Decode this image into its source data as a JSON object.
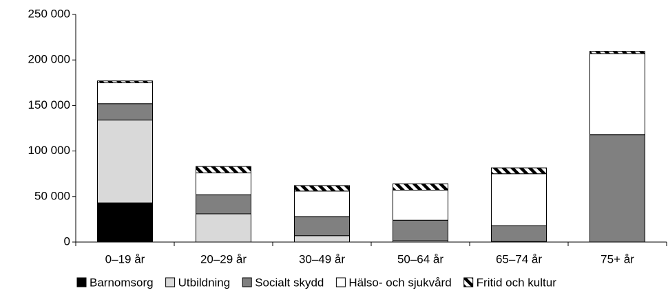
{
  "chart_data": {
    "type": "stacked_bar",
    "categories": [
      "0–19 år",
      "20–29 år",
      "30–49 år",
      "50–64 år",
      "65–74 år",
      "75+ år"
    ],
    "series": [
      {
        "name": "Barnomsorg",
        "color": "#000000",
        "values": [
          43000,
          0,
          0,
          0,
          500,
          0
        ]
      },
      {
        "name": "Utbildning",
        "color": "#d9d9d9",
        "values": [
          91000,
          31000,
          7000,
          1500,
          0,
          0
        ]
      },
      {
        "name": "Socialt skydd",
        "color": "#808080",
        "values": [
          18000,
          21000,
          21000,
          22500,
          17500,
          118000
        ]
      },
      {
        "name": "Hälso- och sjukvård",
        "color": "#ffffff",
        "values": [
          23000,
          24000,
          28000,
          33000,
          57000,
          89000
        ]
      },
      {
        "name": "Fritid och kultur",
        "color": "#ffffff",
        "hatch": true,
        "values": [
          2000,
          7000,
          6000,
          7000,
          6500,
          2500
        ]
      }
    ],
    "ylim": [
      0,
      250000
    ],
    "yticks": [
      0,
      {
        "value": 50000,
        "label": "50 000"
      },
      {
        "value": 100000,
        "label": "100 000"
      },
      {
        "value": 150000,
        "label": "150 000"
      },
      {
        "value": 200000,
        "label": "200 000"
      },
      {
        "value": 250000,
        "label": "250 000"
      }
    ],
    "grid": false
  }
}
